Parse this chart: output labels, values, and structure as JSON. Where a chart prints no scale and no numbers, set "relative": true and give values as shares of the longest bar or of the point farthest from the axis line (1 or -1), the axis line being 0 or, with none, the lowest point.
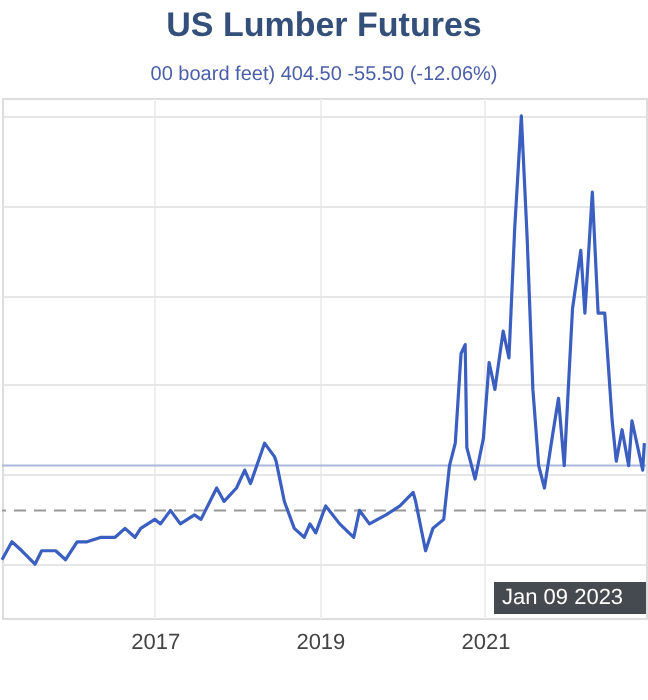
{
  "chart_data": {
    "type": "line",
    "title": "US Lumber Futures",
    "subtitle": "00 board feet) 404.50  -55.50 (-12.06%)",
    "relative": true,
    "grid": true,
    "line_style": "solid",
    "marker": "none",
    "xlim": [
      2015.15,
      2022.95
    ],
    "xticks": [
      2017,
      2019,
      2021
    ],
    "x": [
      2015.15,
      2015.27,
      2015.39,
      2015.55,
      2015.63,
      2015.8,
      2015.92,
      2016.06,
      2016.18,
      2016.35,
      2016.52,
      2016.64,
      2016.76,
      2016.83,
      2017.0,
      2017.07,
      2017.19,
      2017.31,
      2017.48,
      2017.56,
      2017.75,
      2017.84,
      2017.99,
      2018.09,
      2018.16,
      2018.33,
      2018.45,
      2018.47,
      2018.57,
      2018.69,
      2018.81,
      2018.88,
      2018.95,
      2019.07,
      2019.24,
      2019.41,
      2019.48,
      2019.6,
      2019.8,
      2019.97,
      2020.13,
      2020.16,
      2020.28,
      2020.37,
      2020.5,
      2020.57,
      2020.64,
      2020.71,
      2020.76,
      2020.78,
      2020.88,
      2020.98,
      2021.05,
      2021.12,
      2021.22,
      2021.29,
      2021.36,
      2021.44,
      2021.51,
      2021.58,
      2021.65,
      2021.72,
      2021.82,
      2021.89,
      2021.96,
      2022.06,
      2022.16,
      2022.21,
      2022.3,
      2022.37,
      2022.45,
      2022.54,
      2022.59,
      2022.66,
      2022.74,
      2022.78,
      2022.91,
      2022.93
    ],
    "series": [
      {
        "color": "#3a5fc0",
        "values": [
          0.01,
          0.05,
          0.03,
          0.0,
          0.03,
          0.03,
          0.01,
          0.05,
          0.05,
          0.06,
          0.06,
          0.08,
          0.06,
          0.08,
          0.1,
          0.09,
          0.12,
          0.09,
          0.11,
          0.1,
          0.17,
          0.14,
          0.17,
          0.21,
          0.18,
          0.27,
          0.24,
          0.23,
          0.14,
          0.08,
          0.06,
          0.09,
          0.07,
          0.13,
          0.09,
          0.06,
          0.12,
          0.09,
          0.11,
          0.13,
          0.16,
          0.14,
          0.03,
          0.08,
          0.1,
          0.22,
          0.27,
          0.47,
          0.49,
          0.26,
          0.19,
          0.28,
          0.45,
          0.39,
          0.52,
          0.46,
          0.75,
          1.0,
          0.73,
          0.39,
          0.22,
          0.17,
          0.29,
          0.37,
          0.22,
          0.57,
          0.7,
          0.56,
          0.83,
          0.56,
          0.56,
          0.32,
          0.23,
          0.3,
          0.22,
          0.32,
          0.21,
          0.27
        ]
      }
    ],
    "ref_lines": [
      {
        "axis": "y",
        "value": 0.22,
        "color": "#a8b8dc",
        "line_style": "solid"
      },
      {
        "axis": "y",
        "value": 0.12,
        "color": "#999999",
        "line_style": "dashed"
      }
    ],
    "annotations": [
      "Jan 09 2023"
    ]
  }
}
